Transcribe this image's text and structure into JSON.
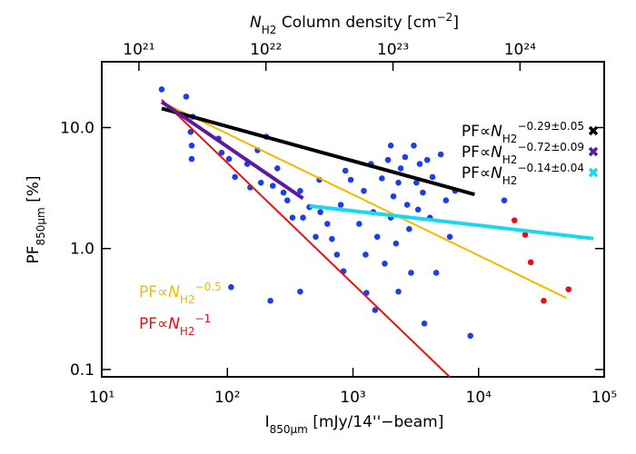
{
  "chart_data": {
    "type": "scatter",
    "xlabel": {
      "i": "I",
      "sub": "850μm",
      "rest": " [mJy/14''−beam]"
    },
    "ylabel": {
      "pf": "PF",
      "sub": "850μm",
      "rest": " [%]"
    },
    "x2label": {
      "n": "N",
      "sub": "H2",
      "rest": " Column density [cm",
      "sup": "−2",
      "end": "]"
    },
    "log_x": true,
    "log_y": true,
    "xlim": [
      10,
      100000
    ],
    "xticks": [
      {
        "value": 10,
        "label": "10¹"
      },
      {
        "value": 100,
        "label": "10²"
      },
      {
        "value": 1000,
        "label": "10³"
      },
      {
        "value": 10000,
        "label": "10⁴"
      },
      {
        "value": 100000,
        "label": "10⁵"
      }
    ],
    "x2lim": [
      5.1e+20,
      4.6e+24
    ],
    "x2ticks": [
      {
        "value": 1e+21,
        "label": "10²¹"
      },
      {
        "value": 1e+22,
        "label": "10²²"
      },
      {
        "value": 1e+23,
        "label": "10²³"
      },
      {
        "value": 1e+24,
        "label": "10²⁴"
      }
    ],
    "ylim": [
      0.087,
      35
    ],
    "yticks": [
      {
        "value": 10,
        "label": "10.0"
      },
      {
        "value": 1,
        "label": "1.0"
      },
      0.1
    ],
    "series": [
      {
        "color": "#1f3fe6",
        "x": [
          30,
          47,
          53,
          51,
          52,
          52,
          85,
          90,
          103,
          115,
          144,
          152,
          174,
          185,
          204,
          230,
          250,
          280,
          300,
          330,
          380,
          400,
          450,
          505,
          540,
          550,
          625,
          680,
          745,
          800,
          840,
          870,
          960,
          1120,
          1220,
          1260,
          1390,
          1450,
          1560,
          1700,
          1790,
          1900,
          2000,
          2100,
          2200,
          2300,
          2400,
          2600,
          2700,
          2800,
          2900,
          3050,
          3200,
          3300,
          3400,
          3600,
          3700,
          3900,
          4100,
          4300,
          4600,
          5000,
          5500,
          5900,
          6500,
          8600,
          16000,
          2000,
          1500,
          2300,
          380,
          1280,
          107,
          220
        ],
        "values": [
          20.7,
          18,
          12.3,
          9.2,
          7.1,
          5.5,
          8.1,
          6.2,
          5.5,
          3.9,
          5.0,
          3.2,
          6.5,
          3.5,
          8.4,
          3.3,
          4.6,
          2.9,
          2.5,
          1.8,
          3.0,
          1.8,
          2.2,
          1.25,
          3.7,
          2.0,
          1.6,
          1.2,
          0.89,
          2.3,
          0.65,
          4.4,
          3.7,
          1.6,
          3.0,
          0.89,
          5.0,
          2.0,
          1.25,
          3.8,
          0.75,
          5.4,
          1.8,
          2.7,
          1.1,
          3.5,
          4.6,
          5.7,
          2.3,
          1.45,
          0.63,
          7.1,
          3.5,
          2.1,
          5.0,
          2.9,
          0.24,
          5.4,
          1.8,
          3.9,
          0.63,
          6.0,
          2.5,
          1.25,
          3.0,
          0.19,
          2.5,
          7.1,
          0.31,
          0.44,
          0.44,
          0.43,
          0.48,
          0.37
        ]
      },
      {
        "color": "#e81010",
        "x": [
          19300,
          23500,
          26000,
          33000,
          52000
        ],
        "values": [
          1.71,
          1.3,
          0.77,
          0.37,
          0.46
        ]
      }
    ],
    "legend_fits": [
      {
        "color": "#000000",
        "x": [
          30,
          9300
        ],
        "values": [
          14.4,
          2.8
        ],
        "label": {
          "pre": "PF∝",
          "n": "N",
          "sub": "H2",
          "sup": "−0.29±0.05"
        }
      },
      {
        "color": "#5b1aa0",
        "x": [
          30,
          400
        ],
        "values": [
          16.3,
          2.6
        ],
        "label": {
          "pre": "PF∝",
          "n": "N",
          "sub": "H2",
          "sup": "−0.72±0.09"
        }
      },
      {
        "color": "#18d8f0",
        "x": [
          450,
          82000
        ],
        "values": [
          2.25,
          1.21
        ],
        "label": {
          "pre": "PF∝",
          "n": "N",
          "sub": "H2",
          "sup": "−0.14±0.04"
        }
      }
    ],
    "annotated_fits": [
      {
        "color": "#f5b800",
        "x": [
          30,
          50000
        ],
        "values": [
          16.3,
          0.39
        ],
        "label": {
          "pre": "PF∝",
          "n": "N",
          "sub": "H2",
          "sup": "−0.5"
        }
      },
      {
        "color": "#e81010",
        "x": [
          30,
          7000
        ],
        "values": [
          17,
          0.073
        ],
        "label": {
          "pre": "PF∝",
          "n": "N",
          "sub": "H2",
          "sup": "−1"
        }
      }
    ]
  }
}
